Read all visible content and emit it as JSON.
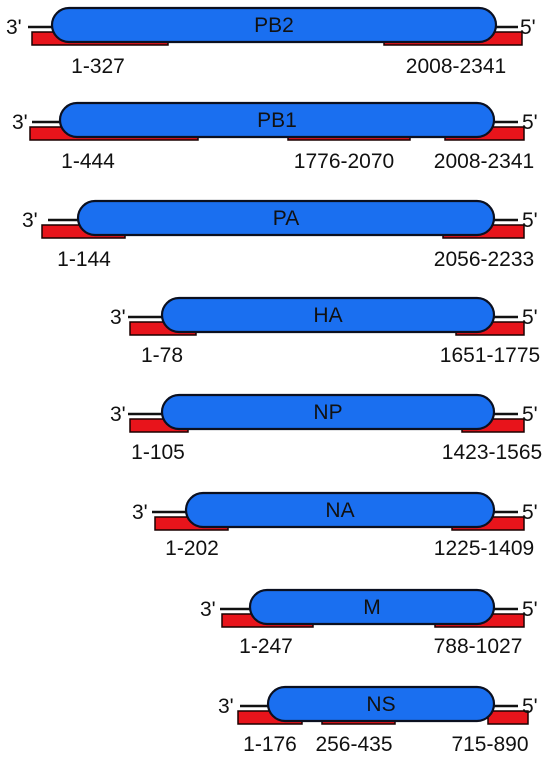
{
  "colors": {
    "segment_fill": "#1a6ff0",
    "segment_stroke": "#0b1020",
    "region_fill": "#e8141b",
    "region_stroke": "#1a0000",
    "line": "#111111"
  },
  "end_labels": {
    "left": "3'",
    "right": "5'"
  },
  "segments": [
    {
      "name": "PB2",
      "regions": [
        "1-327",
        "2008-2341"
      ]
    },
    {
      "name": "PB1",
      "regions": [
        "1-444",
        "1776-2070",
        "2008-2341"
      ]
    },
    {
      "name": "PA",
      "regions": [
        "1-144",
        "2056-2233"
      ]
    },
    {
      "name": "HA",
      "regions": [
        "1-78",
        "1651-1775"
      ]
    },
    {
      "name": "NP",
      "regions": [
        "1-105",
        "1423-1565"
      ]
    },
    {
      "name": "NA",
      "regions": [
        "1-202",
        "1225-1409"
      ]
    },
    {
      "name": "M",
      "regions": [
        "1-247",
        "788-1027"
      ]
    },
    {
      "name": "NS",
      "regions": [
        "1-176",
        "256-435",
        "715-890"
      ]
    }
  ]
}
